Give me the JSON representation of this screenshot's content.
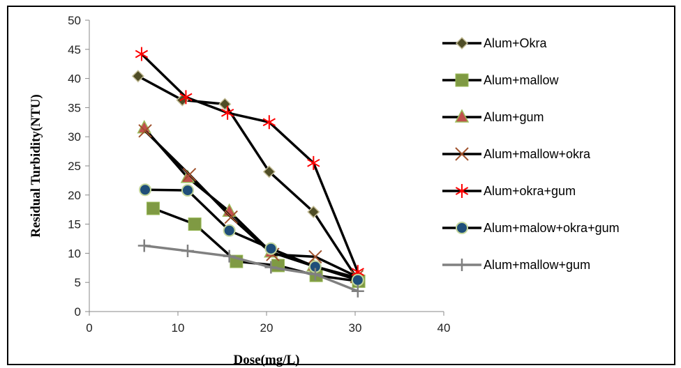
{
  "chart_data": {
    "type": "line",
    "title": "",
    "xlabel": "Dose(mg/L)",
    "ylabel": "Residual Turbidity(NTU)",
    "xlim": [
      0,
      40
    ],
    "ylim": [
      0,
      50
    ],
    "xticks": [
      "0",
      "10",
      "20",
      "30",
      "40"
    ],
    "yticks": [
      "0",
      "5",
      "10",
      "15",
      "20",
      "25",
      "30",
      "35",
      "40",
      "45",
      "50"
    ],
    "grid": false,
    "legend_position": "right",
    "series": [
      {
        "name": "Alum+Okra",
        "marker": "diamond",
        "line_color": "#000000",
        "marker_color": "#4f4d26",
        "x": [
          5.5,
          10.5,
          15.3,
          20.3,
          25.3,
          30.2
        ],
        "y": [
          40.4,
          36.3,
          35.6,
          24.0,
          17.1,
          5.7
        ]
      },
      {
        "name": "Alum+mallow",
        "marker": "square",
        "line_color": "#000000",
        "marker_color": "#7f9a43",
        "x": [
          7.2,
          11.9,
          16.6,
          21.3,
          25.6,
          30.4
        ],
        "y": [
          17.7,
          15.0,
          8.6,
          7.9,
          6.2,
          5.2
        ]
      },
      {
        "name": "Alum+gum",
        "marker": "triangle",
        "line_color": "#000000",
        "marker_color": "#c0504d",
        "x": [
          6.2,
          11.1,
          15.8,
          20.5,
          25.3,
          30.2
        ],
        "y": [
          31.5,
          23.0,
          17.2,
          10.2,
          7.8,
          5.8
        ]
      },
      {
        "name": "Alum+mallow+okra",
        "marker": "x",
        "line_color": "#000000",
        "marker_color": "#a0522d",
        "x": [
          6.3,
          11.3,
          16.0,
          20.7,
          25.5,
          30.2
        ],
        "y": [
          31.0,
          23.5,
          16.2,
          9.8,
          9.4,
          6.0
        ]
      },
      {
        "name": "Alum+okra+gum",
        "marker": "star",
        "line_color": "#000000",
        "marker_color": "#ff0000",
        "x": [
          5.9,
          10.9,
          15.6,
          20.3,
          25.3,
          30.3
        ],
        "y": [
          44.2,
          36.8,
          34.1,
          32.5,
          25.5,
          6.8
        ]
      },
      {
        "name": "Alum+malow+okra+gum",
        "marker": "circle",
        "line_color": "#000000",
        "marker_color": "#1f4e79",
        "x": [
          6.3,
          11.1,
          15.8,
          20.5,
          25.5,
          30.3
        ],
        "y": [
          20.9,
          20.8,
          13.9,
          10.8,
          7.7,
          5.4
        ]
      },
      {
        "name": "Alum+mallow+gum",
        "marker": "plus",
        "line_color": "#808080",
        "marker_color": "#808080",
        "x": [
          6.2,
          11.1,
          15.8,
          20.5,
          25.5,
          30.3
        ],
        "y": [
          11.3,
          10.4,
          9.5,
          7.6,
          6.4,
          3.5
        ]
      }
    ]
  }
}
